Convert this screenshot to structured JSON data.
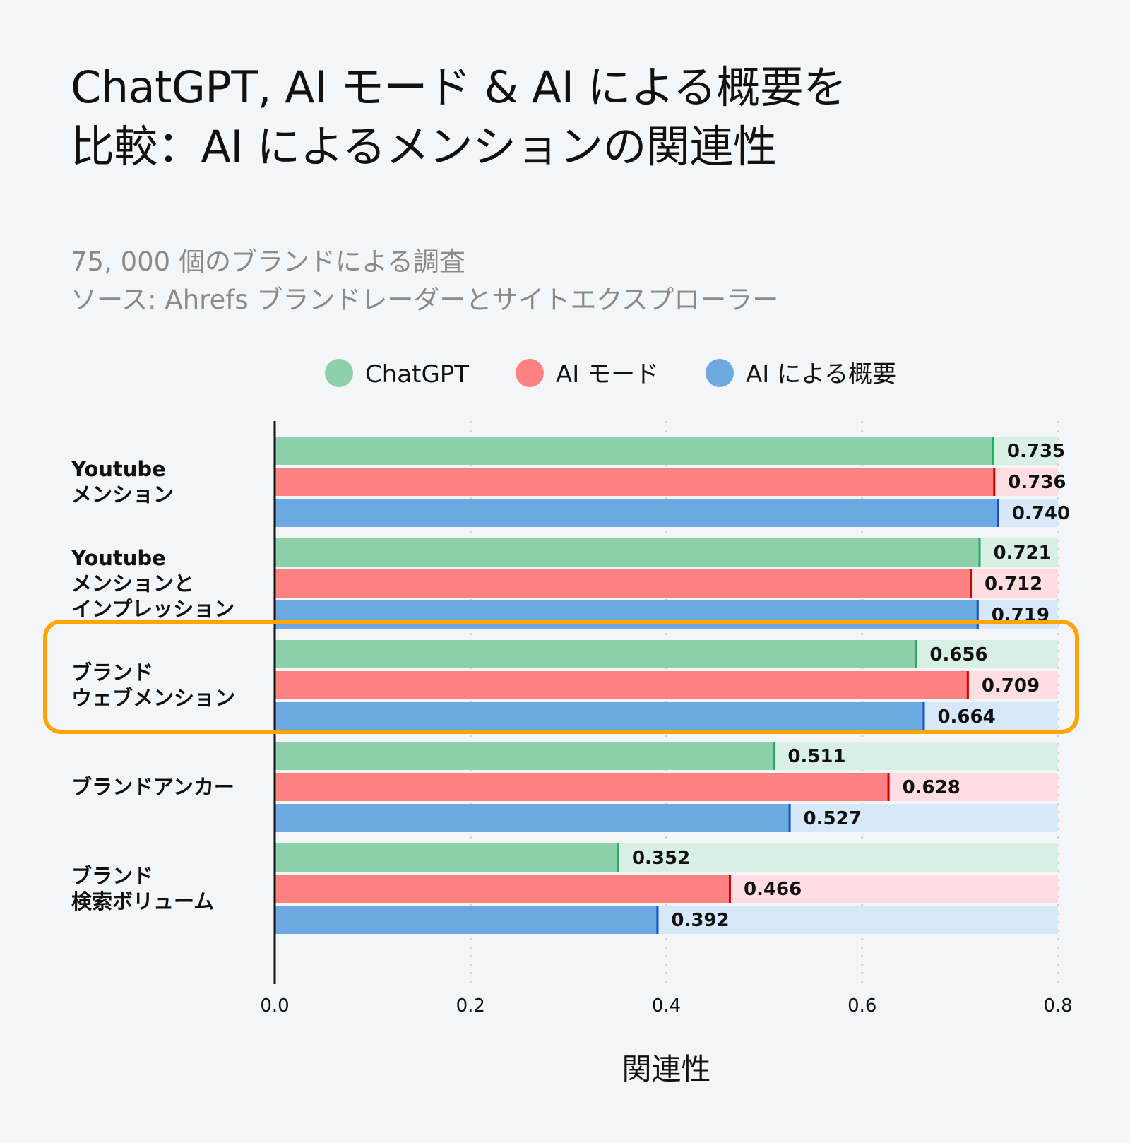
{
  "title_lines": [
    "ChatGPT, AI モード & AI による概要を",
    "比較：AI によるメンションの関連性"
  ],
  "subtitle_lines": [
    "75, 000 個のブランドによる調査",
    "ソース: Ahrefs ブランドレーダーとサイトエクスプローラー"
  ],
  "colors": {
    "background": "#f4f5f7",
    "highlight": "#ffa500",
    "series": [
      {
        "fill": "#8dd1ab",
        "track": "#d8f0e3",
        "marker": "#2ea866"
      },
      {
        "fill": "#ff8282",
        "track": "#ffdde0",
        "marker": "#d00000"
      },
      {
        "fill": "#6ca9e0",
        "track": "#d7e8f8",
        "marker": "#1450d0"
      }
    ]
  },
  "chart_data": {
    "type": "bar",
    "orientation": "horizontal",
    "xlabel": "関連性",
    "xlim": [
      0,
      0.8
    ],
    "xticks": [
      "0.0",
      "0.2",
      "0.4",
      "0.6",
      "0.8"
    ],
    "grid": "vertical dotted",
    "legend_placement": "top-center",
    "categories": [
      [
        "Youtube",
        "メンション"
      ],
      [
        "Youtube",
        "メンションと",
        "インプレッション"
      ],
      [
        "ブランド",
        "ウェブメンション"
      ],
      [
        "ブランドアンカー"
      ],
      [
        "ブランド",
        "検索ボリューム"
      ]
    ],
    "highlighted_category": 2,
    "series": [
      {
        "name": "ChatGPT",
        "values": [
          0.735,
          0.721,
          0.656,
          0.511,
          0.352
        ],
        "labels": [
          "0.735",
          "0.721",
          "0.656",
          "0.511",
          "0.352"
        ]
      },
      {
        "name": "AI モード",
        "values": [
          0.736,
          0.712,
          0.709,
          0.628,
          0.466
        ],
        "labels": [
          "0.736",
          "0.712",
          "0.709",
          "0.628",
          "0.466"
        ]
      },
      {
        "name": "AI による概要",
        "values": [
          0.74,
          0.719,
          0.664,
          0.527,
          0.392
        ],
        "labels": [
          "0.740",
          "0.719",
          "0.664",
          "0.527",
          "0.392"
        ]
      }
    ]
  }
}
